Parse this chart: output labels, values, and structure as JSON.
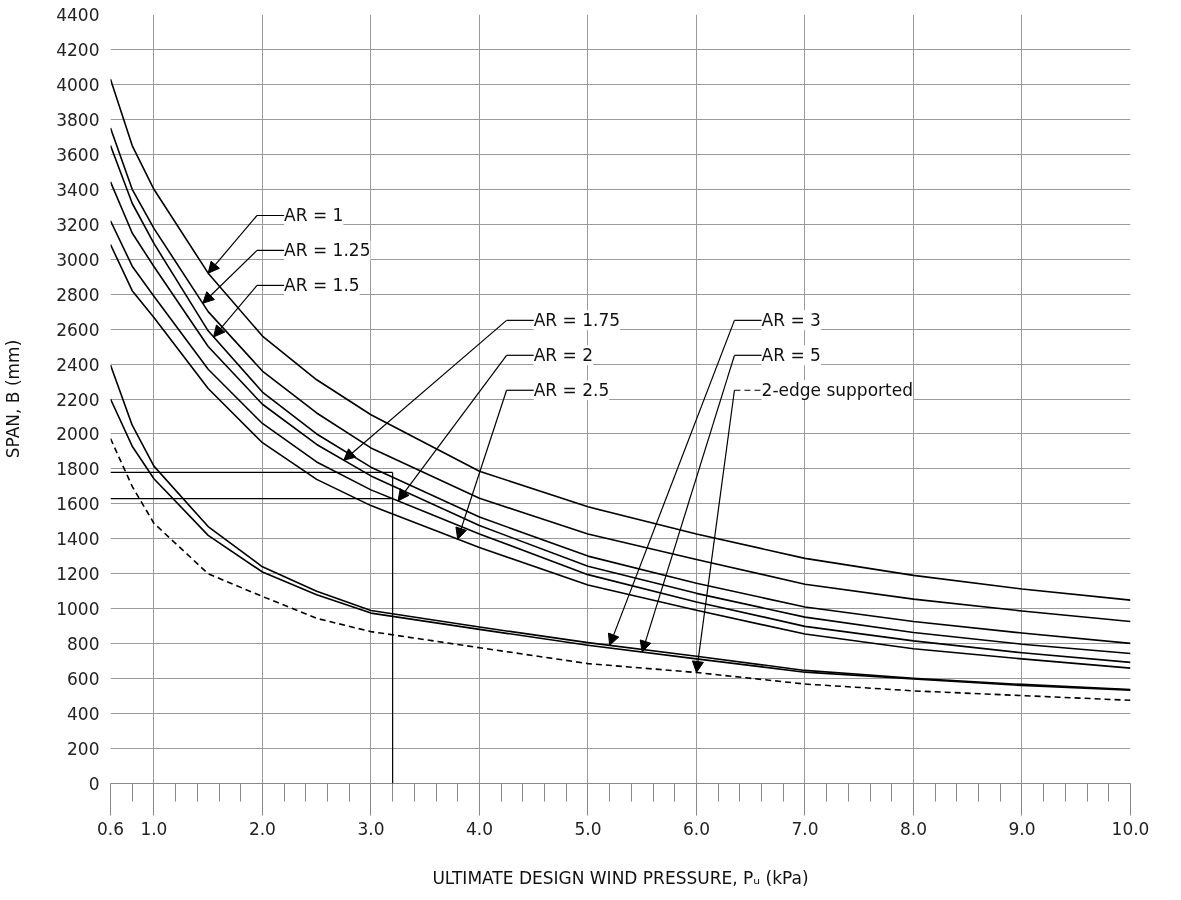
{
  "chart_data": {
    "type": "line",
    "xlabel": "ULTIMATE DESIGN WIND PRESSURE, Pᵤ (kPa)",
    "ylabel": "SPAN, B (mm)",
    "x": [
      0.6,
      0.8,
      1.0,
      1.5,
      2.0,
      2.5,
      3.0,
      4.0,
      5.0,
      6.0,
      7.0,
      8.0,
      9.0,
      10.0
    ],
    "series": [
      {
        "name": "AR = 1",
        "color": "#000000",
        "values": [
          4030,
          3650,
          3400,
          2920,
          2560,
          2310,
          2110,
          1787,
          1583,
          1428,
          1288,
          1191,
          1113,
          1049
        ]
      },
      {
        "name": "AR = 1.25",
        "color": "#000000",
        "values": [
          3750,
          3400,
          3176,
          2700,
          2360,
          2120,
          1920,
          1632,
          1428,
          1282,
          1140,
          1055,
          987,
          927
        ]
      },
      {
        "name": "AR = 1.5",
        "color": "#000000",
        "values": [
          3650,
          3320,
          3090,
          2590,
          2240,
          2000,
          1810,
          1525,
          1301,
          1146,
          1010,
          927,
          861,
          802
        ]
      },
      {
        "name": "AR = 1.75",
        "color": "#000000",
        "values": [
          3443,
          3150,
          2958,
          2500,
          2170,
          1940,
          1760,
          1476,
          1243,
          1088,
          952,
          864,
          797,
          744
        ]
      },
      {
        "name": "AR = 2",
        "color": "#000000",
        "values": [
          3220,
          2960,
          2788,
          2370,
          2060,
          1840,
          1680,
          1428,
          1195,
          1039,
          899,
          816,
          748,
          693
        ]
      },
      {
        "name": "AR = 2.5",
        "color": "#000000",
        "values": [
          3084,
          2820,
          2666,
          2260,
          1950,
          1740,
          1590,
          1350,
          1136,
          991,
          855,
          771,
          713,
          660
        ]
      },
      {
        "name": "AR = 3",
        "color": "#000000",
        "values": [
          2394,
          2050,
          1816,
          1470,
          1240,
          1100,
          990,
          895,
          806,
          728,
          647,
          602,
          567,
          538
        ]
      },
      {
        "name": "AR = 5",
        "color": "#000000",
        "values": [
          2200,
          1930,
          1744,
          1420,
          1210,
          1080,
          975,
          882,
          791,
          713,
          637,
          598,
          561,
          534
        ]
      },
      {
        "name": "2-edge supported",
        "color": "#000000",
        "line_style": "dashed",
        "values": [
          1974,
          1700,
          1489,
          1200,
          1070,
          945,
          869,
          777,
          686,
          635,
          569,
          530,
          503,
          476
        ]
      }
    ],
    "ref_lines": [
      {
        "axis": "x",
        "value": 3.2,
        "color": "#000000"
      },
      {
        "axis": "y",
        "value": 1780,
        "color": "#000000"
      },
      {
        "axis": "y",
        "value": 1630,
        "color": "#000000"
      }
    ],
    "xlim": [
      0.6,
      10.0
    ],
    "ylim": [
      0,
      4400
    ],
    "xticks": [
      {
        "value": 0.6,
        "label": "0.6"
      },
      {
        "value": 1.0,
        "label": "1.0"
      },
      {
        "value": 2.0,
        "label": "2.0"
      },
      {
        "value": 3.0,
        "label": "3.0"
      },
      {
        "value": 4.0,
        "label": "4.0"
      },
      {
        "value": 5.0,
        "label": "5.0"
      },
      {
        "value": 6.0,
        "label": "6.0"
      },
      {
        "value": 7.0,
        "label": "7.0"
      },
      {
        "value": 8.0,
        "label": "8.0"
      },
      {
        "value": 9.0,
        "label": "9.0"
      },
      {
        "value": 10.0,
        "label": "10.0"
      }
    ],
    "yticks": [
      0,
      200,
      400,
      600,
      800,
      1000,
      1200,
      1400,
      1600,
      1800,
      2000,
      2200,
      2400,
      2600,
      2800,
      3000,
      3200,
      3400,
      3600,
      3800,
      4000,
      4200,
      4400
    ],
    "grid": true,
    "legend": "top",
    "marker": "none",
    "line_style": "solid"
  }
}
